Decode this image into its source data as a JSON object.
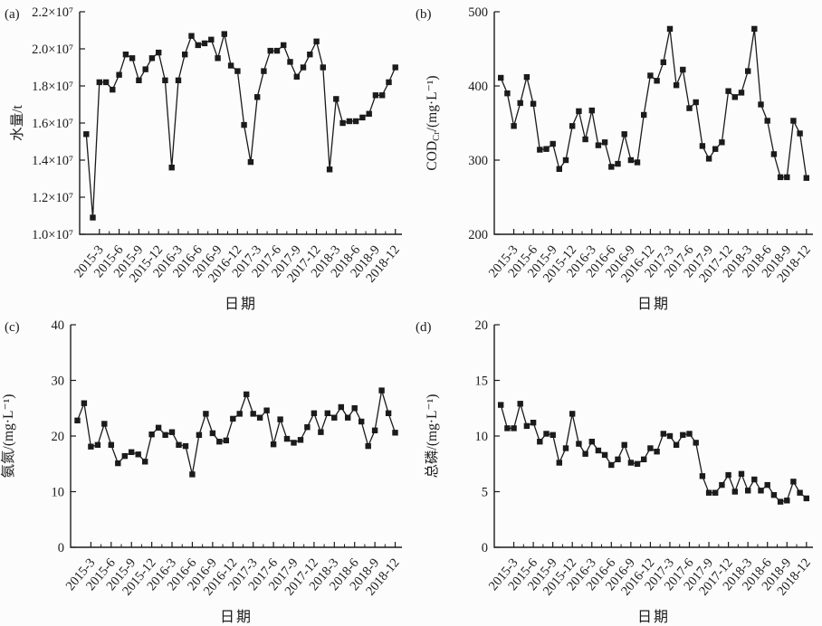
{
  "page": {
    "background": "#fcfcfc",
    "ink": "#1b1b1b"
  },
  "figure": {
    "xlabel": "日期",
    "xtick_labels": [
      "2015-3",
      "2015-6",
      "2015-9",
      "2015-12",
      "2016-3",
      "2016-6",
      "2016-9",
      "2016-12",
      "2017-3",
      "2017-6",
      "2017-9",
      "2017-12",
      "2018-3",
      "2018-6",
      "2018-9",
      "2018-12"
    ],
    "xtick_month_indices": [
      2,
      5,
      8,
      11,
      14,
      17,
      20,
      23,
      26,
      29,
      32,
      35,
      38,
      41,
      44,
      47
    ],
    "n_points": 48,
    "marker": "filled-black-square",
    "line_color": "#1b1b1b"
  },
  "chart_data": [
    {
      "id": "a",
      "panel_label": "(a)",
      "type": "line",
      "ylabel": "水量/t",
      "xlabel": "日期",
      "y_unit": "×10⁷ t",
      "ylim": [
        1.0,
        2.2
      ],
      "ytick_values": [
        1.0,
        1.2,
        1.4,
        1.6,
        1.8,
        2.0,
        2.2
      ],
      "ytick_labels": [
        "1.0×10⁷",
        "1.2×10⁷",
        "1.4×10⁷",
        "1.6×10⁷",
        "1.8×10⁷",
        "2.0×10⁷",
        "2.2×10⁷"
      ],
      "grid": false,
      "values": [
        1.54,
        1.09,
        1.82,
        1.82,
        1.78,
        1.86,
        1.97,
        1.95,
        1.83,
        1.89,
        1.95,
        1.98,
        1.83,
        1.36,
        1.83,
        1.97,
        2.07,
        2.02,
        2.03,
        2.05,
        1.95,
        2.08,
        1.91,
        1.88,
        1.59,
        1.39,
        1.74,
        1.88,
        1.99,
        1.99,
        2.02,
        1.93,
        1.85,
        1.9,
        1.97,
        2.04,
        1.9,
        1.35,
        1.73,
        1.6,
        1.61,
        1.61,
        1.63,
        1.65,
        1.75,
        1.75,
        1.82,
        1.9
      ]
    },
    {
      "id": "b",
      "panel_label": "(b)",
      "type": "line",
      "ylabel": "COD_{Cr}/(mg·L⁻¹)",
      "xlabel": "日期",
      "y_unit": "mg/L",
      "ylim": [
        200,
        500
      ],
      "ytick_values": [
        200,
        300,
        400,
        500
      ],
      "ytick_labels": [
        "200",
        "300",
        "400",
        "500"
      ],
      "grid": false,
      "values": [
        411,
        390,
        346,
        377,
        412,
        376,
        314,
        315,
        322,
        288,
        300,
        346,
        366,
        328,
        367,
        320,
        324,
        291,
        295,
        335,
        300,
        297,
        361,
        414,
        407,
        432,
        477,
        401,
        422,
        370,
        378,
        319,
        302,
        315,
        324,
        393,
        385,
        391,
        420,
        477,
        375,
        353,
        308,
        277,
        277,
        353,
        336,
        276
      ]
    },
    {
      "id": "c",
      "panel_label": "(c)",
      "type": "line",
      "ylabel": "氨氮/(mg·L⁻¹)",
      "xlabel": "日期",
      "y_unit": "mg/L",
      "ylim": [
        0,
        40
      ],
      "ytick_values": [
        0,
        10,
        20,
        30,
        40
      ],
      "ytick_labels": [
        "0",
        "10",
        "20",
        "30",
        "40"
      ],
      "grid": false,
      "values": [
        22.8,
        25.9,
        18.1,
        18.4,
        22.2,
        18.4,
        15.1,
        16.4,
        17.1,
        16.7,
        15.4,
        20.3,
        21.5,
        20.2,
        20.7,
        18.4,
        18.2,
        13.1,
        20.2,
        24.0,
        20.5,
        19.0,
        19.2,
        23.1,
        24.0,
        27.5,
        24.0,
        23.3,
        24.6,
        18.5,
        23.0,
        19.5,
        18.8,
        19.3,
        21.6,
        24.1,
        20.7,
        24.1,
        23.3,
        25.2,
        23.3,
        25.0,
        22.6,
        18.2,
        21.0,
        28.2,
        24.1,
        20.6
      ]
    },
    {
      "id": "d",
      "panel_label": "(d)",
      "type": "line",
      "ylabel": "总磷/(mg·L⁻¹)",
      "xlabel": "日期",
      "y_unit": "mg/L",
      "ylim": [
        0,
        20
      ],
      "ytick_values": [
        0,
        5,
        10,
        15,
        20
      ],
      "ytick_labels": [
        "0",
        "5",
        "10",
        "15",
        "20"
      ],
      "grid": false,
      "values": [
        12.8,
        10.7,
        10.7,
        12.9,
        10.9,
        11.2,
        9.5,
        10.2,
        10.1,
        7.6,
        8.9,
        12.0,
        9.3,
        8.4,
        9.5,
        8.7,
        8.3,
        7.4,
        7.9,
        9.2,
        7.6,
        7.5,
        7.9,
        8.9,
        8.6,
        10.2,
        10.0,
        9.2,
        10.1,
        10.2,
        9.4,
        6.4,
        4.9,
        4.9,
        5.6,
        6.5,
        5.0,
        6.6,
        5.1,
        6.1,
        5.1,
        5.6,
        4.7,
        4.1,
        4.2,
        5.9,
        4.9,
        4.4
      ]
    }
  ]
}
